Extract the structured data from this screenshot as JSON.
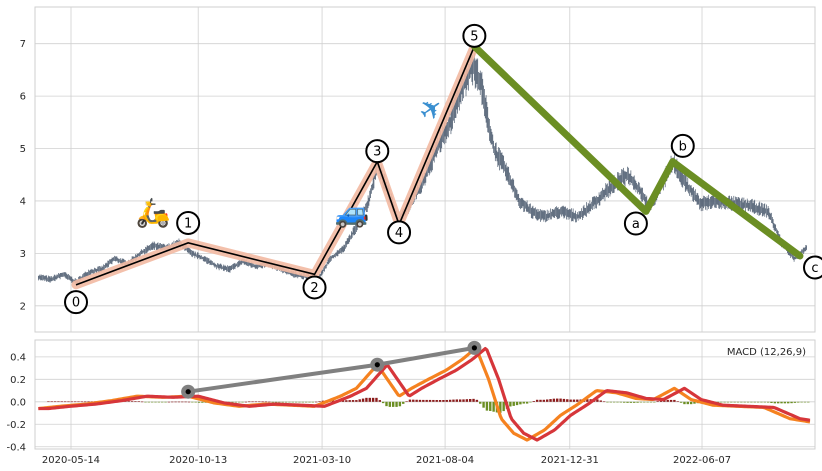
{
  "chart_data": [
    {
      "type": "line",
      "panel": "price",
      "ylim": [
        1.5,
        7.7
      ],
      "yticks": [
        2,
        3,
        4,
        5,
        6,
        7
      ],
      "grid": true,
      "price_path": [
        [
          "2020-04-05",
          2.55
        ],
        [
          "2020-04-20",
          2.5
        ],
        [
          "2020-05-05",
          2.6
        ],
        [
          "2020-05-20",
          2.45
        ],
        [
          "2020-06-05",
          2.65
        ],
        [
          "2020-06-20",
          2.7
        ],
        [
          "2020-07-05",
          2.9
        ],
        [
          "2020-07-20",
          2.8
        ],
        [
          "2020-08-05",
          3.0
        ],
        [
          "2020-08-20",
          3.15
        ],
        [
          "2020-09-05",
          3.1
        ],
        [
          "2020-09-20",
          3.2
        ],
        [
          "2020-10-05",
          3.0
        ],
        [
          "2020-10-20",
          2.9
        ],
        [
          "2020-11-05",
          2.75
        ],
        [
          "2020-11-20",
          2.7
        ],
        [
          "2020-12-05",
          2.85
        ],
        [
          "2020-12-20",
          2.75
        ],
        [
          "2021-01-05",
          2.8
        ],
        [
          "2021-01-20",
          2.7
        ],
        [
          "2021-02-05",
          2.6
        ],
        [
          "2021-02-20",
          2.55
        ],
        [
          "2021-03-05",
          2.5
        ],
        [
          "2021-03-20",
          2.9
        ],
        [
          "2021-04-05",
          3.1
        ],
        [
          "2021-04-20",
          3.5
        ],
        [
          "2021-05-05",
          4.0
        ],
        [
          "2021-05-15",
          4.7
        ],
        [
          "2021-05-25",
          4.3
        ],
        [
          "2021-06-10",
          3.6
        ],
        [
          "2021-06-25",
          4.0
        ],
        [
          "2021-07-10",
          4.4
        ],
        [
          "2021-07-25",
          5.0
        ],
        [
          "2021-08-10",
          5.5
        ],
        [
          "2021-08-25",
          6.2
        ],
        [
          "2021-09-05",
          6.6
        ],
        [
          "2021-09-15",
          6.3
        ],
        [
          "2021-10-01",
          5.0
        ],
        [
          "2021-10-15",
          4.6
        ],
        [
          "2021-11-01",
          4.0
        ],
        [
          "2021-11-15",
          3.8
        ],
        [
          "2021-12-01",
          3.7
        ],
        [
          "2021-12-20",
          3.8
        ],
        [
          "2022-01-10",
          3.7
        ],
        [
          "2022-02-01",
          4.0
        ],
        [
          "2022-02-20",
          4.3
        ],
        [
          "2022-03-10",
          4.5
        ],
        [
          "2022-03-25",
          4.2
        ],
        [
          "2022-04-05",
          3.9
        ],
        [
          "2022-04-20",
          4.3
        ],
        [
          "2022-05-03",
          4.75
        ],
        [
          "2022-05-20",
          4.3
        ],
        [
          "2022-06-05",
          3.95
        ],
        [
          "2022-06-25",
          4.0
        ],
        [
          "2022-07-15",
          3.95
        ],
        [
          "2022-08-05",
          3.9
        ],
        [
          "2022-08-25",
          3.8
        ],
        [
          "2022-09-10",
          3.2
        ],
        [
          "2022-09-25",
          2.9
        ],
        [
          "2022-10-10",
          3.1
        ]
      ],
      "impulse_waves": [
        {
          "label": "0",
          "x": "2020-05-20",
          "y": 2.4
        },
        {
          "label": "1",
          "x": "2020-10-01",
          "y": 3.2
        },
        {
          "label": "2",
          "x": "2021-03-01",
          "y": 2.6
        },
        {
          "label": "3",
          "x": "2021-05-15",
          "y": 4.75
        },
        {
          "label": "4",
          "x": "2021-06-10",
          "y": 3.55
        },
        {
          "label": "5",
          "x": "2021-09-08",
          "y": 6.95
        }
      ],
      "corrective_waves": [
        {
          "label": "5",
          "x": "2021-09-08",
          "y": 6.95
        },
        {
          "label": "a",
          "x": "2022-04-01",
          "y": 3.8
        },
        {
          "label": "b",
          "x": "2022-05-03",
          "y": 4.75
        },
        {
          "label": "c",
          "x": "2022-10-02",
          "y": 2.95
        }
      ],
      "label_positions": [
        {
          "label": "0",
          "x": "2020-05-20",
          "y": 2.07
        },
        {
          "label": "1",
          "x": "2020-10-01",
          "y": 3.58
        },
        {
          "label": "2",
          "x": "2021-03-01",
          "y": 2.35
        },
        {
          "label": "3",
          "x": "2021-05-15",
          "y": 4.95
        },
        {
          "label": "4",
          "x": "2021-06-10",
          "y": 3.4
        },
        {
          "label": "5",
          "x": "2021-09-08",
          "y": 7.15
        },
        {
          "label": "a",
          "x": "2022-03-20",
          "y": 3.57
        },
        {
          "label": "b",
          "x": "2022-05-15",
          "y": 5.05
        },
        {
          "label": "c",
          "x": "2022-10-20",
          "y": 2.73
        }
      ],
      "icons": [
        {
          "name": "scooter-icon",
          "glyph": "🛵",
          "x": "2020-08-20",
          "y": 3.6
        },
        {
          "name": "car-icon",
          "glyph": "🚙",
          "x": "2021-04-15",
          "y": 3.6
        },
        {
          "name": "airplane-icon",
          "glyph": "✈",
          "x": "2021-07-25",
          "y": 5.6
        }
      ],
      "colors": {
        "price": "#4b5a6e",
        "impulse_band": "#f2b9a2",
        "impulse_line": "#000000",
        "corrective": "#6b8e23"
      }
    },
    {
      "type": "line",
      "panel": "macd",
      "legend": "MACD (12,26,9)",
      "legend_position": "top-right",
      "ylim": [
        -0.42,
        0.55
      ],
      "yticks": [
        -0.4,
        -0.2,
        0.0,
        0.2,
        0.4
      ],
      "x_tick_labels": [
        "2020-05-14",
        "2020-10-13",
        "2021-03-10",
        "2021-08-04",
        "2021-12-31",
        "2022-06-07"
      ],
      "x_range": [
        "2020-04-01",
        "2022-10-20"
      ],
      "macd_path": [
        [
          "2020-04-05",
          -0.06
        ],
        [
          "2020-05-01",
          -0.04
        ],
        [
          "2020-06-01",
          -0.02
        ],
        [
          "2020-07-01",
          0.01
        ],
        [
          "2020-08-01",
          0.05
        ],
        [
          "2020-09-01",
          0.04
        ],
        [
          "2020-10-01",
          0.05
        ],
        [
          "2020-11-01",
          -0.01
        ],
        [
          "2020-12-01",
          -0.04
        ],
        [
          "2021-01-01",
          -0.02
        ],
        [
          "2021-02-01",
          -0.03
        ],
        [
          "2021-03-01",
          -0.04
        ],
        [
          "2021-04-01",
          0.05
        ],
        [
          "2021-04-20",
          0.12
        ],
        [
          "2021-05-15",
          0.33
        ],
        [
          "2021-06-10",
          0.05
        ],
        [
          "2021-06-25",
          0.12
        ],
        [
          "2021-07-15",
          0.2
        ],
        [
          "2021-08-05",
          0.28
        ],
        [
          "2021-08-25",
          0.38
        ],
        [
          "2021-09-10",
          0.48
        ],
        [
          "2021-09-25",
          0.2
        ],
        [
          "2021-10-10",
          -0.15
        ],
        [
          "2021-10-25",
          -0.28
        ],
        [
          "2021-11-10",
          -0.34
        ],
        [
          "2021-12-01",
          -0.25
        ],
        [
          "2021-12-20",
          -0.12
        ],
        [
          "2022-01-10",
          -0.02
        ],
        [
          "2022-02-01",
          0.1
        ],
        [
          "2022-02-25",
          0.08
        ],
        [
          "2022-03-20",
          0.03
        ],
        [
          "2022-04-10",
          0.02
        ],
        [
          "2022-05-05",
          0.12
        ],
        [
          "2022-05-25",
          0.02
        ],
        [
          "2022-06-20",
          -0.03
        ],
        [
          "2022-07-20",
          -0.04
        ],
        [
          "2022-08-20",
          -0.05
        ],
        [
          "2022-09-20",
          -0.15
        ],
        [
          "2022-10-15",
          -0.18
        ]
      ],
      "signal_shift_days": 12,
      "divergence_points": [
        {
          "x": "2020-10-01",
          "y": 0.09
        },
        {
          "x": "2021-05-15",
          "y": 0.33
        },
        {
          "x": "2021-09-08",
          "y": 0.48
        }
      ],
      "colors": {
        "macd": "#f58220",
        "signal": "#d6363a",
        "hist_pos": "#8b1a1a",
        "hist_neg": "#6b8e23",
        "divergence": "#808080"
      }
    }
  ]
}
